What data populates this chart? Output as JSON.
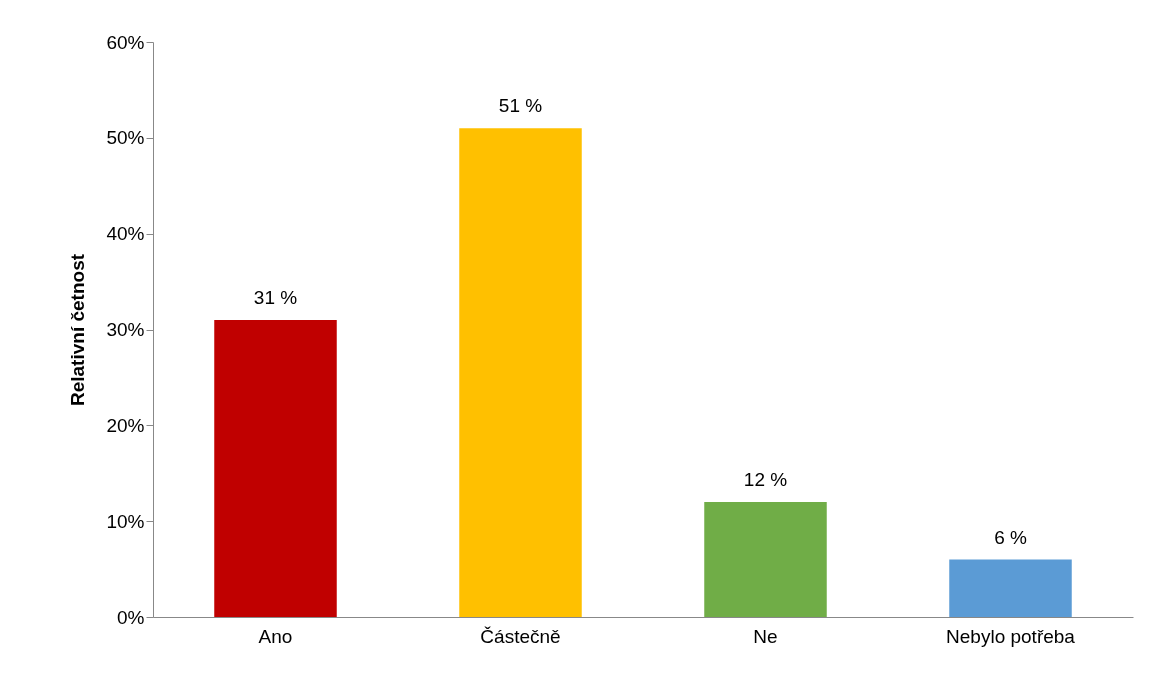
{
  "chart_data": {
    "type": "bar",
    "ylabel": "Relativní četnost",
    "categories": [
      "Ano",
      "Částečně",
      "Ne",
      "Nebylo potřeba"
    ],
    "values": [
      31,
      51,
      12,
      6
    ],
    "colors": [
      "#c00000",
      "#ffc000",
      "#70ad47",
      "#5b9bd5"
    ],
    "value_labels": [
      "31 %",
      "51 %",
      "12 %",
      "6 %"
    ],
    "ylim": [
      0,
      60
    ],
    "yticks": [
      {
        "value": 0,
        "label": "0%"
      },
      {
        "value": 10,
        "label": "10%"
      },
      {
        "value": 20,
        "label": "20%"
      },
      {
        "value": 30,
        "label": "30%"
      },
      {
        "value": 40,
        "label": "40%"
      },
      {
        "value": 50,
        "label": "50%"
      },
      {
        "value": 60,
        "label": "60%"
      }
    ],
    "grid": false
  }
}
